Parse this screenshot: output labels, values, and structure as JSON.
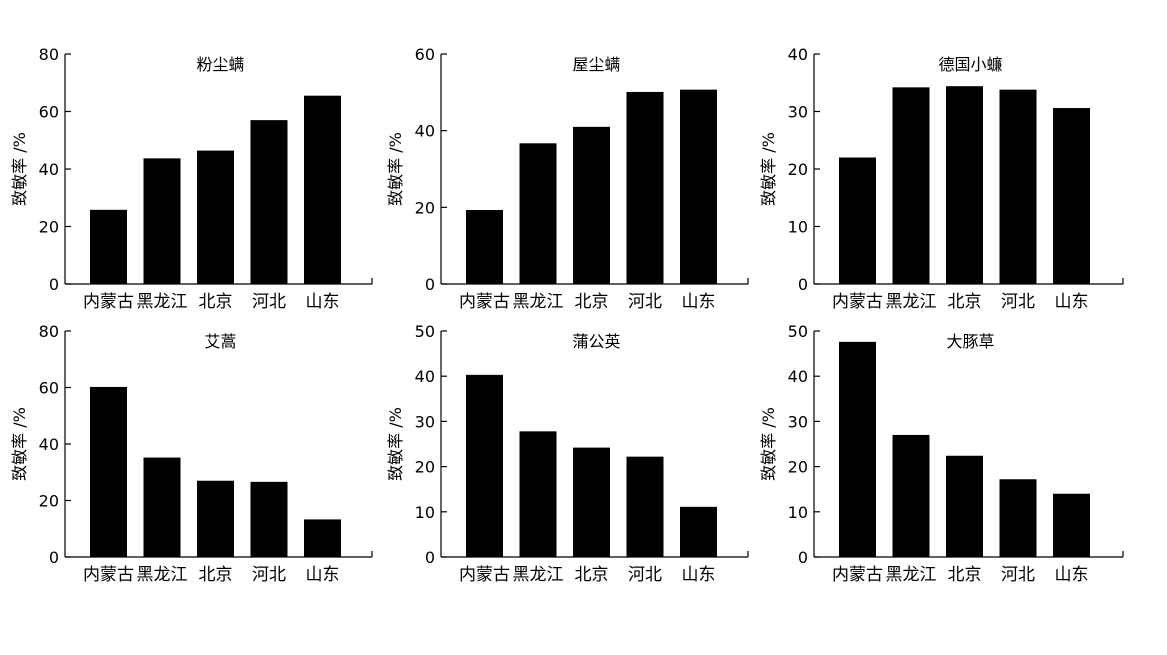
{
  "chart_data": [
    {
      "type": "bar",
      "title": "粉尘螨",
      "ylabel": "致敏率 /%",
      "categories": [
        "内蒙古",
        "黑龙江",
        "北京",
        "河北",
        "山东"
      ],
      "values": [
        25.8,
        43.7,
        46.4,
        57.0,
        65.5
      ],
      "ylim": [
        0,
        80
      ],
      "yticks": [
        0,
        20,
        40,
        60,
        80
      ],
      "ytick_labels": [
        "0",
        "20",
        "40",
        "60",
        "80"
      ],
      "grid": false
    },
    {
      "type": "bar",
      "title": "屋尘螨",
      "ylabel": "致敏率 /%",
      "categories": [
        "内蒙古",
        "黑龙江",
        "北京",
        "河北",
        "山东"
      ],
      "values": [
        19.3,
        36.7,
        41.0,
        50.1,
        50.7
      ],
      "ylim": [
        0,
        60
      ],
      "yticks": [
        0,
        20,
        40,
        60
      ],
      "ytick_labels": [
        "0",
        "20",
        "40",
        "60"
      ],
      "grid": false
    },
    {
      "type": "bar",
      "title": "德国小蠊",
      "ylabel": "致敏率 /%",
      "categories": [
        "内蒙古",
        "黑龙江",
        "北京",
        "河北",
        "山东"
      ],
      "values": [
        22.0,
        34.2,
        34.4,
        33.8,
        30.6
      ],
      "ylim": [
        0,
        40
      ],
      "yticks": [
        0,
        10,
        20,
        30,
        40
      ],
      "ytick_labels": [
        "0",
        "10",
        "20",
        "30",
        "40"
      ],
      "grid": false
    },
    {
      "type": "bar",
      "title": "艾蒿",
      "ylabel": "致敏率 /%",
      "categories": [
        "内蒙古",
        "黑龙江",
        "北京",
        "河北",
        "山东"
      ],
      "values": [
        60.2,
        35.2,
        27.0,
        26.6,
        13.3
      ],
      "ylim": [
        0,
        80
      ],
      "yticks": [
        0,
        20,
        40,
        60,
        80
      ],
      "ytick_labels": [
        "0",
        "20",
        "40",
        "60",
        "80"
      ],
      "grid": false
    },
    {
      "type": "bar",
      "title": "蒲公英",
      "ylabel": "致敏率 /%",
      "categories": [
        "内蒙古",
        "黑龙江",
        "北京",
        "河北",
        "山东"
      ],
      "values": [
        40.3,
        27.8,
        24.2,
        22.2,
        11.1
      ],
      "ylim": [
        0,
        50
      ],
      "yticks": [
        0,
        10,
        20,
        30,
        40,
        50
      ],
      "ytick_labels": [
        "0",
        "10",
        "20",
        "30",
        "40",
        "50"
      ],
      "grid": false
    },
    {
      "type": "bar",
      "title": "大豚草",
      "ylabel": "致敏率 /%",
      "categories": [
        "内蒙古",
        "黑龙江",
        "北京",
        "河北",
        "山东"
      ],
      "values": [
        47.6,
        27.0,
        22.4,
        17.2,
        14.0
      ],
      "ylim": [
        0,
        50
      ],
      "yticks": [
        0,
        10,
        20,
        30,
        40,
        50
      ],
      "ytick_labels": [
        "0",
        "10",
        "20",
        "30",
        "40",
        "50"
      ],
      "grid": false
    }
  ],
  "colors": {
    "bar": "#000000",
    "axis": "#000000",
    "background": "#ffffff"
  }
}
